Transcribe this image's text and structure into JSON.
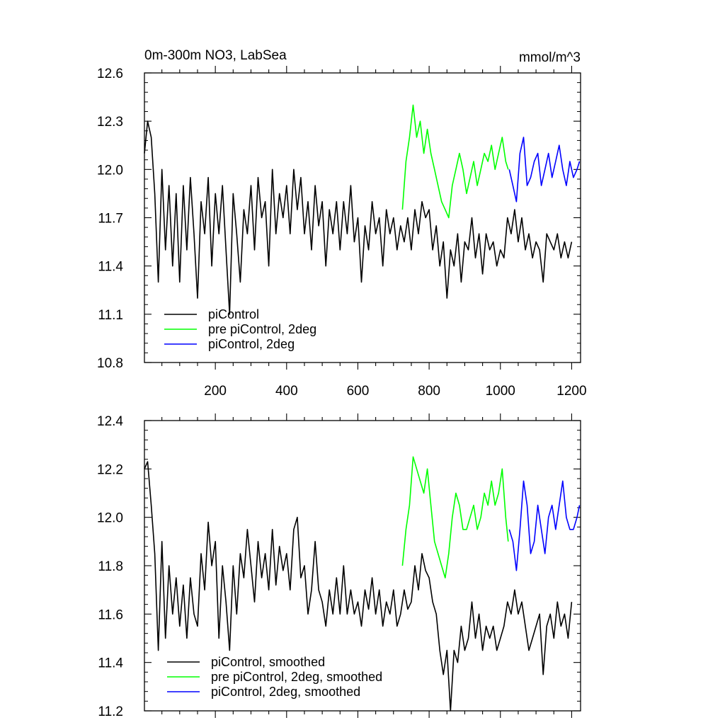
{
  "chart_data": [
    {
      "type": "line",
      "title": "0m-300m NO3, LabSea",
      "units": "mmol/m^3",
      "xlim": [
        1,
        1225
      ],
      "ylim": [
        10.8,
        12.6
      ],
      "xticks": [
        200,
        400,
        600,
        800,
        1000,
        1200
      ],
      "xtick_labels": [
        "200",
        "400",
        "600",
        "800",
        "1000",
        "1200"
      ],
      "yticks": [
        10.8,
        11.1,
        11.4,
        11.7,
        12.0,
        12.3,
        12.6
      ],
      "ytick_labels": [
        "10.8",
        "11.1",
        "11.4",
        "11.7",
        "12.0",
        "12.3",
        "12.6"
      ],
      "legend_position": "bottom-left",
      "series": [
        {
          "name": "piControl",
          "color": "#000000",
          "x": [
            1,
            10,
            20,
            30,
            40,
            50,
            60,
            70,
            80,
            90,
            100,
            110,
            120,
            130,
            140,
            150,
            160,
            170,
            180,
            190,
            200,
            210,
            220,
            230,
            240,
            250,
            260,
            270,
            280,
            290,
            300,
            310,
            320,
            330,
            340,
            350,
            360,
            370,
            380,
            390,
            400,
            410,
            420,
            430,
            440,
            450,
            460,
            470,
            480,
            490,
            500,
            510,
            520,
            530,
            540,
            550,
            560,
            570,
            580,
            590,
            600,
            610,
            620,
            630,
            640,
            650,
            660,
            670,
            680,
            690,
            700,
            710,
            720,
            730,
            740,
            750,
            760,
            770,
            780,
            790,
            800,
            810,
            820,
            830,
            840,
            850,
            860,
            870,
            880,
            890,
            900,
            910,
            920,
            930,
            940,
            950,
            960,
            970,
            980,
            990,
            1000,
            1010,
            1020,
            1030,
            1040,
            1050,
            1060,
            1070,
            1080,
            1090,
            1100,
            1110,
            1120,
            1130,
            1140,
            1150,
            1160,
            1170,
            1180,
            1190,
            1200
          ],
          "y": [
            12.1,
            12.3,
            12.2,
            11.85,
            11.3,
            12.0,
            11.5,
            11.9,
            11.4,
            11.85,
            11.3,
            11.9,
            11.5,
            11.95,
            11.6,
            11.2,
            11.8,
            11.6,
            11.95,
            11.4,
            11.85,
            11.6,
            11.9,
            11.5,
            11.1,
            11.85,
            11.6,
            11.3,
            11.75,
            11.6,
            11.9,
            11.5,
            11.95,
            11.7,
            11.8,
            11.4,
            12.0,
            11.6,
            11.85,
            11.7,
            11.9,
            11.6,
            12.0,
            11.75,
            11.95,
            11.6,
            11.8,
            11.5,
            11.9,
            11.65,
            11.8,
            11.4,
            11.75,
            11.6,
            11.8,
            11.5,
            11.8,
            11.6,
            11.9,
            11.55,
            11.7,
            11.3,
            11.65,
            11.5,
            11.8,
            11.6,
            11.7,
            11.4,
            11.75,
            11.6,
            11.7,
            11.5,
            11.65,
            11.55,
            11.7,
            11.5,
            11.75,
            11.6,
            11.8,
            11.7,
            11.75,
            11.5,
            11.65,
            11.4,
            11.55,
            11.2,
            11.5,
            11.4,
            11.6,
            11.3,
            11.55,
            11.5,
            11.7,
            11.45,
            11.6,
            11.35,
            11.6,
            11.5,
            11.55,
            11.4,
            11.5,
            11.45,
            11.7,
            11.6,
            11.75,
            11.55,
            11.7,
            11.5,
            11.6,
            11.45,
            11.55,
            11.5,
            11.3,
            11.6,
            11.55,
            11.5,
            11.6,
            11.45,
            11.55,
            11.45,
            11.55
          ]
        },
        {
          "name": "pre piControl, 2deg",
          "color": "#00ff00",
          "x": [
            725,
            735,
            745,
            755,
            765,
            775,
            785,
            795,
            805,
            815,
            825,
            835,
            845,
            855,
            865,
            875,
            885,
            895,
            905,
            915,
            925,
            935,
            945,
            955,
            965,
            975,
            985,
            995,
            1005,
            1015,
            1022
          ],
          "y": [
            11.75,
            12.05,
            12.2,
            12.4,
            12.2,
            12.3,
            12.1,
            12.25,
            12.1,
            12.0,
            11.9,
            11.8,
            11.75,
            11.7,
            11.9,
            12.0,
            12.1,
            12.0,
            11.85,
            11.95,
            12.05,
            11.9,
            12.0,
            12.1,
            12.05,
            12.15,
            12.0,
            12.1,
            12.2,
            12.05,
            12.0
          ]
        },
        {
          "name": "piControl, 2deg",
          "color": "#0000ff",
          "x": [
            1025,
            1035,
            1045,
            1055,
            1065,
            1075,
            1085,
            1095,
            1105,
            1115,
            1125,
            1135,
            1145,
            1155,
            1165,
            1175,
            1185,
            1195,
            1205,
            1215,
            1222
          ],
          "y": [
            12.0,
            11.9,
            11.8,
            12.1,
            12.2,
            11.9,
            11.95,
            12.05,
            12.1,
            11.9,
            12.0,
            12.1,
            11.95,
            12.05,
            12.15,
            12.0,
            11.9,
            12.05,
            11.95,
            12.0,
            12.05
          ]
        }
      ]
    },
    {
      "type": "line",
      "xlim": [
        1,
        1225
      ],
      "ylim": [
        11.2,
        12.4
      ],
      "xticks": [
        200,
        400,
        600,
        800,
        1000,
        1200
      ],
      "yticks": [
        11.2,
        11.4,
        11.6,
        11.8,
        12.0,
        12.2,
        12.4
      ],
      "ytick_labels": [
        "11.2",
        "11.4",
        "11.6",
        "11.8",
        "12.0",
        "12.2",
        "12.4"
      ],
      "legend_position": "bottom-left",
      "series": [
        {
          "name": "piControl, smoothed",
          "color": "#000000",
          "x": [
            1,
            10,
            20,
            30,
            40,
            50,
            60,
            70,
            80,
            90,
            100,
            110,
            120,
            130,
            140,
            150,
            160,
            170,
            180,
            190,
            200,
            210,
            220,
            230,
            240,
            250,
            260,
            270,
            280,
            290,
            300,
            310,
            320,
            330,
            340,
            350,
            360,
            370,
            380,
            390,
            400,
            410,
            420,
            430,
            440,
            450,
            460,
            470,
            480,
            490,
            500,
            510,
            520,
            530,
            540,
            550,
            560,
            570,
            580,
            590,
            600,
            610,
            620,
            630,
            640,
            650,
            660,
            670,
            680,
            690,
            700,
            710,
            720,
            730,
            740,
            750,
            760,
            770,
            780,
            790,
            800,
            810,
            820,
            830,
            840,
            850,
            860,
            870,
            880,
            890,
            900,
            910,
            920,
            930,
            940,
            950,
            960,
            970,
            980,
            990,
            1000,
            1010,
            1020,
            1030,
            1040,
            1050,
            1060,
            1070,
            1080,
            1090,
            1100,
            1110,
            1120,
            1130,
            1140,
            1150,
            1160,
            1170,
            1180,
            1190,
            1200
          ],
          "y": [
            12.2,
            12.23,
            12.05,
            11.85,
            11.45,
            11.9,
            11.5,
            11.8,
            11.6,
            11.75,
            11.55,
            11.72,
            11.5,
            11.75,
            11.6,
            11.55,
            11.85,
            11.7,
            11.98,
            11.8,
            11.9,
            11.5,
            11.8,
            11.65,
            11.45,
            11.8,
            11.6,
            11.85,
            11.75,
            11.95,
            11.8,
            11.65,
            11.9,
            11.75,
            11.85,
            11.7,
            11.95,
            11.72,
            11.88,
            11.78,
            11.85,
            11.7,
            11.95,
            12.0,
            11.75,
            11.8,
            11.6,
            11.7,
            11.9,
            11.7,
            11.65,
            11.55,
            11.7,
            11.6,
            11.75,
            11.6,
            11.8,
            11.6,
            11.7,
            11.6,
            11.65,
            11.55,
            11.7,
            11.62,
            11.75,
            11.6,
            11.7,
            11.55,
            11.65,
            11.6,
            11.7,
            11.55,
            11.6,
            11.7,
            11.62,
            11.65,
            11.8,
            11.7,
            11.85,
            11.78,
            11.75,
            11.65,
            11.6,
            11.45,
            11.35,
            11.45,
            11.2,
            11.45,
            11.4,
            11.55,
            11.45,
            11.5,
            11.65,
            11.5,
            11.6,
            11.45,
            11.55,
            11.5,
            11.55,
            11.45,
            11.5,
            11.55,
            11.65,
            11.6,
            11.7,
            11.6,
            11.65,
            11.55,
            11.45,
            11.5,
            11.55,
            11.6,
            11.35,
            11.55,
            11.6,
            11.5,
            11.65,
            11.55,
            11.6,
            11.5,
            11.65
          ]
        },
        {
          "name": "pre piControl, 2deg, smoothed",
          "color": "#00ff00",
          "x": [
            725,
            735,
            745,
            755,
            765,
            775,
            785,
            795,
            805,
            815,
            825,
            835,
            845,
            855,
            865,
            875,
            885,
            895,
            905,
            915,
            925,
            935,
            945,
            955,
            965,
            975,
            985,
            995,
            1005,
            1015,
            1022
          ],
          "y": [
            11.8,
            11.95,
            12.05,
            12.25,
            12.2,
            12.15,
            12.1,
            12.2,
            12.05,
            11.9,
            11.85,
            11.8,
            11.75,
            11.85,
            12.0,
            12.1,
            12.05,
            11.95,
            11.95,
            12.0,
            12.05,
            11.95,
            12.0,
            12.1,
            12.05,
            12.15,
            12.05,
            12.1,
            12.2,
            12.0,
            11.9
          ]
        },
        {
          "name": "piControl, 2deg, smoothed",
          "color": "#0000ff",
          "x": [
            1025,
            1035,
            1045,
            1055,
            1065,
            1075,
            1085,
            1095,
            1105,
            1115,
            1125,
            1135,
            1145,
            1155,
            1165,
            1175,
            1185,
            1195,
            1205,
            1215,
            1222
          ],
          "y": [
            11.95,
            11.9,
            11.78,
            11.95,
            12.15,
            12.05,
            11.85,
            11.9,
            12.05,
            11.95,
            11.85,
            12.0,
            12.05,
            11.95,
            12.05,
            12.15,
            12.0,
            11.95,
            11.95,
            12.0,
            12.05
          ]
        }
      ]
    }
  ]
}
